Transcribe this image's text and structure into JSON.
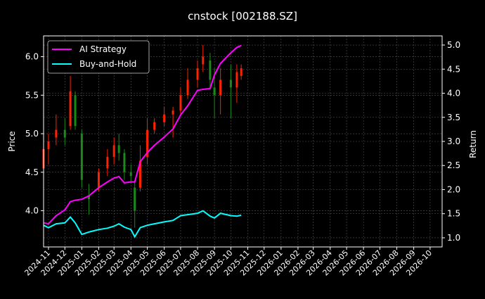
{
  "chart_data": {
    "type": "candlestick+line",
    "title": "cnstock [002188.SZ]",
    "ylabel_left": "Price",
    "ylabel_right": "Return",
    "xlabel": "",
    "xlim": [
      "2024-10-23",
      "2026-10-23"
    ],
    "ylim_left": [
      3.53,
      6.27
    ],
    "ylim_right": [
      0.81,
      5.19
    ],
    "grid": true,
    "legend_position": "top-left",
    "colors": {
      "up": "#ff2200",
      "down": "#1a8a1a",
      "strategy": "#ff00ff",
      "buy_hold": "#00ffff",
      "background": "#000000",
      "grid": "#555555"
    },
    "x_ticks": [
      "2024-11",
      "2024-12",
      "2025-01",
      "2025-02",
      "2025-03",
      "2025-04",
      "2025-05",
      "2025-06",
      "2025-07",
      "2025-08",
      "2025-09",
      "2025-10",
      "2025-11",
      "2025-12",
      "2026-01",
      "2026-02",
      "2026-03",
      "2026-04",
      "2026-05",
      "2026-06",
      "2026-07",
      "2026-08",
      "2026-09",
      "2026-10"
    ],
    "y_ticks_left": [
      "4.0",
      "4.5",
      "5.0",
      "5.5",
      "6.0"
    ],
    "y_ticks_right": [
      "1.0",
      "1.5",
      "2.0",
      "2.5",
      "3.0",
      "3.5",
      "4.0",
      "4.5",
      "5.0"
    ],
    "legend": [
      {
        "label": "AI Strategy",
        "series": "strategy"
      },
      {
        "label": "Buy-and-Hold",
        "series": "buy_hold"
      }
    ],
    "data": [
      {
        "date": "2024-10-23",
        "open": 4.55,
        "high": 4.85,
        "low": 4.5,
        "close": 4.8,
        "strategy": 1.31,
        "buy_hold": 1.26
      },
      {
        "date": "2024-11-01",
        "open": 4.8,
        "high": 5.0,
        "low": 4.6,
        "close": 4.9,
        "strategy": 1.29,
        "buy_hold": 1.21
      },
      {
        "date": "2024-11-15",
        "open": 4.95,
        "high": 5.25,
        "low": 4.85,
        "close": 5.05,
        "strategy": 1.46,
        "buy_hold": 1.29
      },
      {
        "date": "2024-12-01",
        "open": 5.05,
        "high": 5.2,
        "low": 4.85,
        "close": 4.95,
        "strategy": 1.58,
        "buy_hold": 1.31
      },
      {
        "date": "2024-12-11",
        "open": 5.1,
        "high": 5.75,
        "low": 5.05,
        "close": 5.55,
        "strategy": 1.75,
        "buy_hold": 1.43
      },
      {
        "date": "2024-12-20",
        "open": 5.5,
        "high": 5.55,
        "low": 5.05,
        "close": 5.1,
        "strategy": 1.78,
        "buy_hold": 1.31
      },
      {
        "date": "2025-01-01",
        "open": 5.0,
        "high": 5.05,
        "low": 4.3,
        "close": 4.4,
        "strategy": 1.8,
        "buy_hold": 1.07
      },
      {
        "date": "2025-01-14",
        "open": 4.2,
        "high": 4.35,
        "low": 3.95,
        "close": 4.15,
        "strategy": 1.87,
        "buy_hold": 1.12
      },
      {
        "date": "2025-02-01",
        "open": 4.3,
        "high": 4.55,
        "low": 4.25,
        "close": 4.5,
        "strategy": 2.04,
        "buy_hold": 1.17
      },
      {
        "date": "2025-02-17",
        "open": 4.55,
        "high": 4.8,
        "low": 4.45,
        "close": 4.7,
        "strategy": 2.16,
        "buy_hold": 1.2
      },
      {
        "date": "2025-03-01",
        "open": 4.7,
        "high": 4.95,
        "low": 4.6,
        "close": 4.85,
        "strategy": 2.24,
        "buy_hold": 1.24
      },
      {
        "date": "2025-03-10",
        "open": 4.85,
        "high": 5.0,
        "low": 4.65,
        "close": 4.75,
        "strategy": 2.27,
        "buy_hold": 1.29
      },
      {
        "date": "2025-03-20",
        "open": 4.75,
        "high": 4.8,
        "low": 4.4,
        "close": 4.5,
        "strategy": 2.14,
        "buy_hold": 1.22
      },
      {
        "date": "2025-04-01",
        "open": 4.5,
        "high": 4.6,
        "low": 4.35,
        "close": 4.45,
        "strategy": 2.16,
        "buy_hold": 1.17
      },
      {
        "date": "2025-04-08",
        "open": 4.3,
        "high": 4.4,
        "low": 3.78,
        "close": 4.0,
        "strategy": 2.16,
        "buy_hold": 1.02
      },
      {
        "date": "2025-04-18",
        "open": 4.3,
        "high": 4.85,
        "low": 4.25,
        "close": 4.65,
        "strategy": 2.58,
        "buy_hold": 1.21
      },
      {
        "date": "2025-05-01",
        "open": 4.7,
        "high": 5.2,
        "low": 4.6,
        "close": 5.05,
        "strategy": 2.77,
        "buy_hold": 1.26
      },
      {
        "date": "2025-05-14",
        "open": 5.05,
        "high": 5.2,
        "low": 5.0,
        "close": 5.15,
        "strategy": 2.92,
        "buy_hold": 1.29
      },
      {
        "date": "2025-06-01",
        "open": 5.15,
        "high": 5.35,
        "low": 5.1,
        "close": 5.25,
        "strategy": 3.09,
        "buy_hold": 1.33
      },
      {
        "date": "2025-06-17",
        "open": 5.25,
        "high": 5.35,
        "low": 4.95,
        "close": 5.3,
        "strategy": 3.26,
        "buy_hold": 1.36
      },
      {
        "date": "2025-07-01",
        "open": 5.3,
        "high": 5.6,
        "low": 5.25,
        "close": 5.5,
        "strategy": 3.55,
        "buy_hold": 1.46
      },
      {
        "date": "2025-07-14",
        "open": 5.5,
        "high": 5.85,
        "low": 5.45,
        "close": 5.7,
        "strategy": 3.74,
        "buy_hold": 1.48
      },
      {
        "date": "2025-08-01",
        "open": 5.7,
        "high": 5.95,
        "low": 5.6,
        "close": 5.85,
        "strategy": 4.06,
        "buy_hold": 1.51
      },
      {
        "date": "2025-08-11",
        "open": 5.9,
        "high": 6.15,
        "low": 5.8,
        "close": 6.0,
        "strategy": 4.08,
        "buy_hold": 1.56
      },
      {
        "date": "2025-08-24",
        "open": 5.95,
        "high": 6.05,
        "low": 5.6,
        "close": 5.7,
        "strategy": 4.1,
        "buy_hold": 1.45
      },
      {
        "date": "2025-09-01",
        "open": 5.6,
        "high": 5.85,
        "low": 5.2,
        "close": 5.5,
        "strategy": 4.38,
        "buy_hold": 1.41
      },
      {
        "date": "2025-09-12",
        "open": 5.5,
        "high": 5.85,
        "low": 5.25,
        "close": 5.7,
        "strategy": 4.62,
        "buy_hold": 1.51
      },
      {
        "date": "2025-10-01",
        "open": 5.7,
        "high": 5.9,
        "low": 5.2,
        "close": 5.6,
        "strategy": 4.84,
        "buy_hold": 1.46
      },
      {
        "date": "2025-10-12",
        "open": 5.6,
        "high": 5.9,
        "low": 5.4,
        "close": 5.8,
        "strategy": 4.95,
        "buy_hold": 1.45
      },
      {
        "date": "2025-10-20",
        "open": 5.75,
        "high": 5.9,
        "low": 5.7,
        "close": 5.85,
        "strategy": 4.99,
        "buy_hold": 1.47
      }
    ]
  }
}
